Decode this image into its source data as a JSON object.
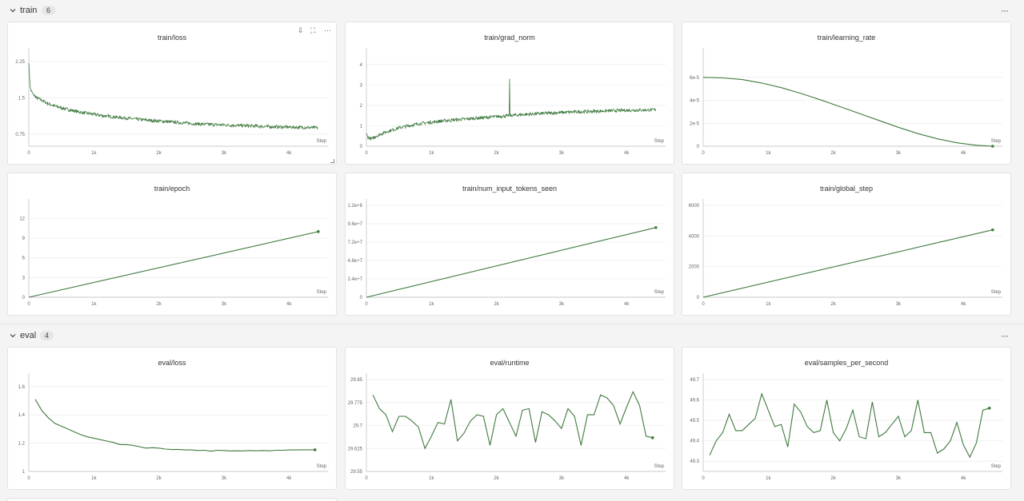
{
  "sections": [
    {
      "title": "train",
      "count": "6",
      "more": "···"
    },
    {
      "title": "eval",
      "count": "4",
      "more": "···"
    }
  ],
  "panel_tools": {
    "pin": "⇩",
    "fullscreen": "⛶",
    "more": "···"
  },
  "theme": {
    "line_color": "#3f7a3f",
    "grid_color": "#ececec"
  },
  "chart_data": [
    {
      "type": "line",
      "title": "train/loss",
      "xlabel": "Step",
      "xticks": [
        "0",
        "1k",
        "2k",
        "3k",
        "4k"
      ],
      "yticks": [
        "0.75",
        "1.5",
        "2.25"
      ],
      "xlim": [
        0,
        4600
      ],
      "ylim": [
        0.5,
        2.4
      ],
      "noisy": true,
      "end_marker": false,
      "series": [
        {
          "x": [
            0,
            20,
            60,
            120,
            200,
            300,
            400,
            600,
            800,
            1000,
            1200,
            1500,
            1800,
            2000,
            2300,
            2600,
            3000,
            3400,
            3800,
            4200,
            4450
          ],
          "y": [
            2.25,
            1.7,
            1.58,
            1.5,
            1.45,
            1.38,
            1.33,
            1.26,
            1.2,
            1.16,
            1.12,
            1.08,
            1.04,
            1.02,
            0.99,
            0.96,
            0.94,
            0.92,
            0.9,
            0.89,
            0.88
          ]
        }
      ]
    },
    {
      "type": "line",
      "title": "train/grad_norm",
      "xlabel": "Step",
      "xticks": [
        "0",
        "1k",
        "2k",
        "3k",
        "4k"
      ],
      "yticks": [
        "0",
        "1",
        "2",
        "3",
        "4"
      ],
      "xlim": [
        0,
        4600
      ],
      "ylim": [
        0,
        4.5
      ],
      "noisy": true,
      "end_marker": false,
      "spike": {
        "x": 2200,
        "y": 3.3
      },
      "series": [
        {
          "x": [
            0,
            20,
            80,
            150,
            300,
            500,
            800,
            1200,
            1600,
            2000,
            2400,
            2800,
            3200,
            3600,
            4000,
            4450
          ],
          "y": [
            0.6,
            0.45,
            0.35,
            0.5,
            0.7,
            0.9,
            1.1,
            1.25,
            1.35,
            1.45,
            1.55,
            1.62,
            1.68,
            1.72,
            1.76,
            1.78
          ]
        }
      ]
    },
    {
      "type": "line",
      "title": "train/learning_rate",
      "xlabel": "Step",
      "xticks": [
        "0",
        "1k",
        "2k",
        "3k",
        "4k"
      ],
      "yticks": [
        "0",
        "2e-5",
        "4e-5",
        "6e-5"
      ],
      "xlim": [
        0,
        4600
      ],
      "ylim": [
        0,
        8e-05
      ],
      "noisy": false,
      "end_marker": true,
      "series": [
        {
          "x": [
            0,
            300,
            600,
            900,
            1200,
            1500,
            1800,
            2100,
            2400,
            2700,
            3000,
            3300,
            3600,
            3900,
            4200,
            4450
          ],
          "y": [
            6e-05,
            5.95e-05,
            5.8e-05,
            5.5e-05,
            5.1e-05,
            4.6e-05,
            4.05e-05,
            3.45e-05,
            2.85e-05,
            2.25e-05,
            1.65e-05,
            1.1e-05,
            6.5e-06,
            3e-06,
            8e-07,
            0
          ]
        }
      ]
    },
    {
      "type": "line",
      "title": "train/epoch",
      "xlabel": "Step",
      "xticks": [
        "0",
        "1k",
        "2k",
        "3k",
        "4k"
      ],
      "yticks": [
        "0",
        "3",
        "6",
        "9",
        "12"
      ],
      "xlim": [
        0,
        4600
      ],
      "ylim": [
        0,
        14
      ],
      "noisy": false,
      "end_marker": true,
      "series": [
        {
          "x": [
            0,
            4450
          ],
          "y": [
            0,
            10
          ]
        }
      ]
    },
    {
      "type": "line",
      "title": "train/num_input_tokens_seen",
      "xlabel": "Step",
      "xticks": [
        "0",
        "1k",
        "2k",
        "3k",
        "4k"
      ],
      "yticks": [
        "0",
        "2.4e+7",
        "4.8e+7",
        "7.2e+7",
        "9.6e+7",
        "1.2e+8"
      ],
      "xlim": [
        0,
        4600
      ],
      "ylim": [
        0,
        120000000.0
      ],
      "noisy": false,
      "end_marker": true,
      "series": [
        {
          "x": [
            0,
            4450
          ],
          "y": [
            0,
            91000000.0
          ]
        }
      ]
    },
    {
      "type": "line",
      "title": "train/global_step",
      "xlabel": "Step",
      "xticks": [
        "0",
        "1k",
        "2k",
        "3k",
        "4k"
      ],
      "yticks": [
        "0",
        "2000",
        "4000",
        "6000"
      ],
      "xlim": [
        0,
        4600
      ],
      "ylim": [
        0,
        6000
      ],
      "noisy": false,
      "end_marker": true,
      "series": [
        {
          "x": [
            0,
            4450
          ],
          "y": [
            0,
            4400
          ]
        }
      ]
    },
    {
      "type": "line",
      "title": "eval/loss",
      "xlabel": "Step",
      "xticks": [
        "0",
        "1k",
        "2k",
        "3k",
        "4k"
      ],
      "yticks": [
        "1",
        "1.2",
        "1.4",
        "1.6"
      ],
      "xlim": [
        0,
        4600
      ],
      "ylim": [
        1.0,
        1.65
      ],
      "noisy": false,
      "end_marker": true,
      "series": [
        {
          "x": [
            100,
            200,
            300,
            400,
            500,
            600,
            700,
            800,
            900,
            1000,
            1100,
            1200,
            1300,
            1400,
            1500,
            1600,
            1700,
            1800,
            1900,
            2000,
            2100,
            2200,
            2300,
            2400,
            2500,
            2600,
            2700,
            2800,
            2900,
            3000,
            3100,
            3200,
            3300,
            3400,
            3500,
            3600,
            3700,
            3800,
            3900,
            4000,
            4100,
            4200,
            4300,
            4400
          ],
          "y": [
            1.51,
            1.43,
            1.38,
            1.34,
            1.32,
            1.3,
            1.28,
            1.26,
            1.245,
            1.235,
            1.225,
            1.215,
            1.205,
            1.19,
            1.19,
            1.185,
            1.175,
            1.165,
            1.168,
            1.165,
            1.158,
            1.155,
            1.156,
            1.152,
            1.152,
            1.148,
            1.15,
            1.143,
            1.15,
            1.148,
            1.145,
            1.146,
            1.145,
            1.148,
            1.146,
            1.148,
            1.146,
            1.15,
            1.15,
            1.152,
            1.152,
            1.153,
            1.153,
            1.153
          ]
        }
      ]
    },
    {
      "type": "line",
      "title": "eval/runtime",
      "xlabel": "Step",
      "xticks": [
        "0",
        "1k",
        "2k",
        "3k",
        "4k"
      ],
      "yticks": [
        "29.55",
        "29.625",
        "29.7",
        "29.775",
        "29.85"
      ],
      "xlim": [
        0,
        4600
      ],
      "ylim": [
        29.55,
        29.85
      ],
      "noisy": false,
      "end_marker": true,
      "series": [
        {
          "x": [
            100,
            200,
            300,
            400,
            500,
            600,
            700,
            800,
            900,
            1000,
            1100,
            1200,
            1300,
            1400,
            1500,
            1600,
            1700,
            1800,
            1900,
            2000,
            2100,
            2200,
            2300,
            2400,
            2500,
            2600,
            2700,
            2800,
            2900,
            3000,
            3100,
            3200,
            3300,
            3400,
            3500,
            3600,
            3700,
            3800,
            3900,
            4000,
            4100,
            4200,
            4300,
            4400
          ],
          "y": [
            29.8,
            29.755,
            29.735,
            29.68,
            29.73,
            29.73,
            29.715,
            29.695,
            29.625,
            29.665,
            29.71,
            29.705,
            29.785,
            29.65,
            29.675,
            29.715,
            29.735,
            29.73,
            29.635,
            29.735,
            29.755,
            29.71,
            29.665,
            29.75,
            29.755,
            29.645,
            29.745,
            29.735,
            29.715,
            29.69,
            29.755,
            29.73,
            29.635,
            29.735,
            29.735,
            29.8,
            29.79,
            29.765,
            29.705,
            29.76,
            29.81,
            29.765,
            29.665,
            29.66
          ]
        }
      ]
    },
    {
      "type": "line",
      "title": "eval/samples_per_second",
      "xlabel": "Step",
      "xticks": [
        "0",
        "1k",
        "2k",
        "3k",
        "4k"
      ],
      "yticks": [
        "49.3",
        "49.4",
        "49.5",
        "49.6",
        "49.7"
      ],
      "xlim": [
        0,
        4600
      ],
      "ylim": [
        49.25,
        49.7
      ],
      "noisy": false,
      "end_marker": true,
      "series": [
        {
          "x": [
            100,
            200,
            300,
            400,
            500,
            600,
            700,
            800,
            900,
            1000,
            1100,
            1200,
            1300,
            1400,
            1500,
            1600,
            1700,
            1800,
            1900,
            2000,
            2100,
            2200,
            2300,
            2400,
            2500,
            2600,
            2700,
            2800,
            2900,
            3000,
            3100,
            3200,
            3300,
            3400,
            3500,
            3600,
            3700,
            3800,
            3900,
            4000,
            4100,
            4200,
            4300,
            4400
          ],
          "y": [
            49.33,
            49.4,
            49.44,
            49.53,
            49.45,
            49.45,
            49.48,
            49.51,
            49.63,
            49.55,
            49.47,
            49.48,
            49.37,
            49.58,
            49.54,
            49.47,
            49.44,
            49.45,
            49.6,
            49.44,
            49.4,
            49.46,
            49.55,
            49.42,
            49.41,
            49.59,
            49.42,
            49.44,
            49.48,
            49.52,
            49.42,
            49.45,
            49.6,
            49.44,
            49.44,
            49.34,
            49.36,
            49.4,
            49.49,
            49.38,
            49.32,
            49.39,
            49.55,
            49.56
          ]
        }
      ]
    }
  ]
}
